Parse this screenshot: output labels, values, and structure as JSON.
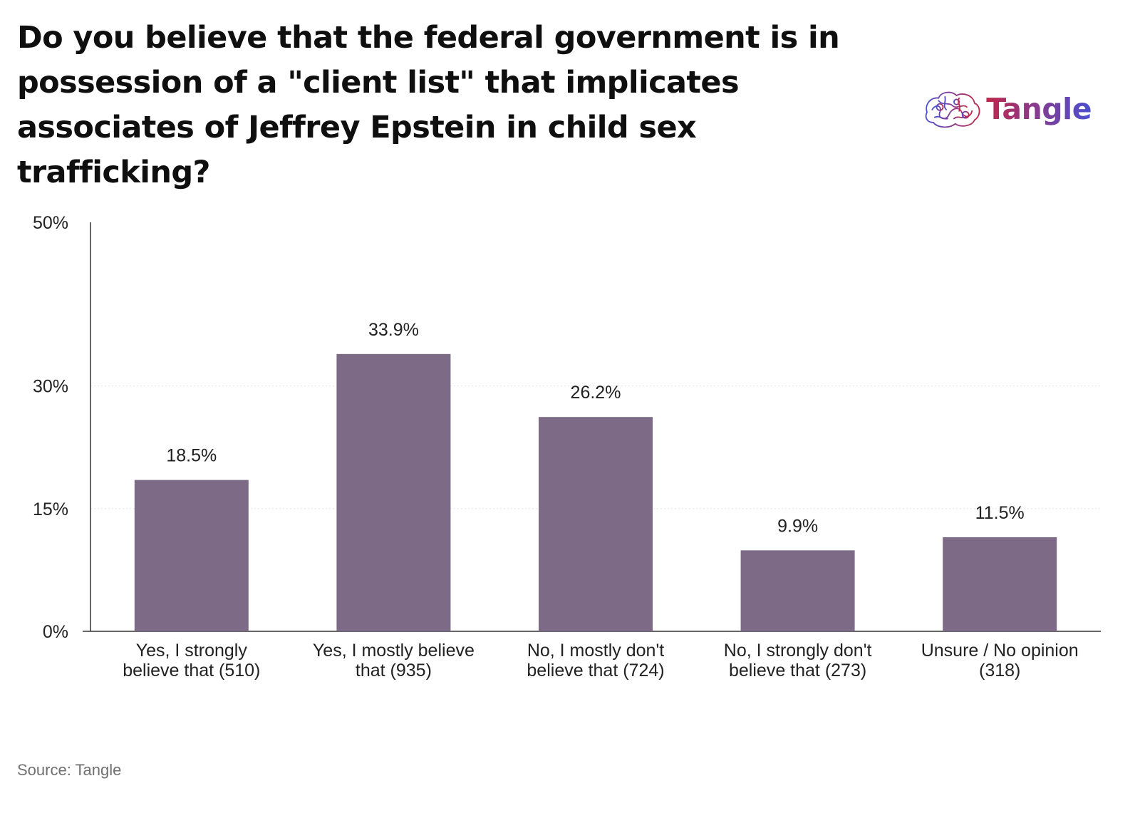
{
  "title": "Do you believe that the federal government is in possession of a \"client list\" that implicates associates of Jeffrey Epstein in child sex trafficking?",
  "logo": {
    "name": "Tangle",
    "icon": "brain-icon",
    "colors": [
      "#c0284a",
      "#8a3a8c",
      "#4a4fd0"
    ]
  },
  "source": "Source: Tangle",
  "chart_data": {
    "type": "bar",
    "categories": [
      [
        "Yes, I strongly",
        "believe that (510)"
      ],
      [
        "Yes, I mostly believe",
        "that (935)"
      ],
      [
        "No, I mostly don't",
        "believe that (724)"
      ],
      [
        "No, I strongly don't",
        "believe that (273)"
      ],
      [
        "Unsure / No opinion",
        "(318)"
      ]
    ],
    "values": [
      18.5,
      33.9,
      26.2,
      9.9,
      11.5
    ],
    "data_labels": [
      "18.5%",
      "33.9%",
      "26.2%",
      "9.9%",
      "11.5%"
    ],
    "yticks": [
      0,
      15,
      30,
      50
    ],
    "ytick_labels": [
      "0%",
      "15%",
      "30%",
      "50%"
    ],
    "ylim": [
      0,
      50
    ],
    "grid": true,
    "bar_color": "#7d6a86"
  }
}
